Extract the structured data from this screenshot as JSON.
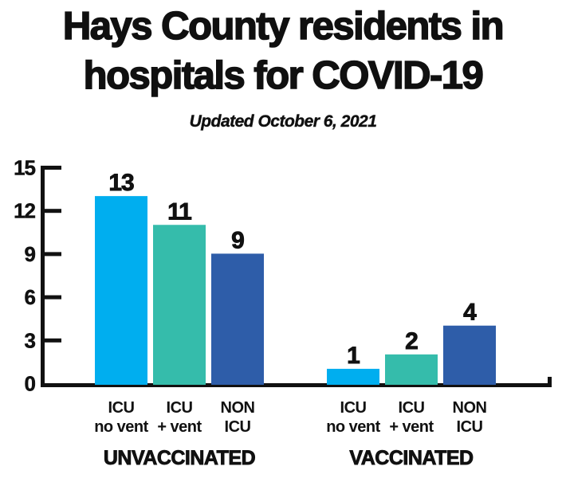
{
  "title": {
    "line1": "Hays County residents in",
    "line2": "hospitals for COVID-19"
  },
  "subtitle": "Updated October 6, 2021",
  "colors": {
    "ink": "#111111",
    "icu_no_vent": "#00AEEF",
    "icu_plus_vent": "#35BCAB",
    "non_icu": "#2E5DA9",
    "background": "#FFFFFF"
  },
  "chart_data": {
    "type": "bar",
    "title": "Hays County residents in hospitals for COVID-19",
    "subtitle": "Updated October 6, 2021",
    "xlabel": "",
    "ylabel": "",
    "ylim": [
      0,
      15
    ],
    "yticks": [
      0,
      3,
      6,
      9,
      12,
      15
    ],
    "grid": false,
    "legend": "none",
    "axis_color": "#111111",
    "value_label_color": "#101010",
    "groups": [
      {
        "label": "UNVACCINATED",
        "bars": [
          {
            "category": [
              "ICU",
              "no vent"
            ],
            "value": 13,
            "color": "#00AEEF"
          },
          {
            "category": [
              "ICU",
              "+ vent"
            ],
            "value": 11,
            "color": "#35BCAB"
          },
          {
            "category": [
              "NON",
              "ICU"
            ],
            "value": 9,
            "color": "#2E5DA9"
          }
        ]
      },
      {
        "label": "VACCINATED",
        "bars": [
          {
            "category": [
              "ICU",
              "no vent"
            ],
            "value": 1,
            "color": "#00AEEF"
          },
          {
            "category": [
              "ICU",
              "+ vent"
            ],
            "value": 2,
            "color": "#35BCAB"
          },
          {
            "category": [
              "NON",
              "ICU"
            ],
            "value": 4,
            "color": "#2E5DA9"
          }
        ]
      }
    ]
  }
}
